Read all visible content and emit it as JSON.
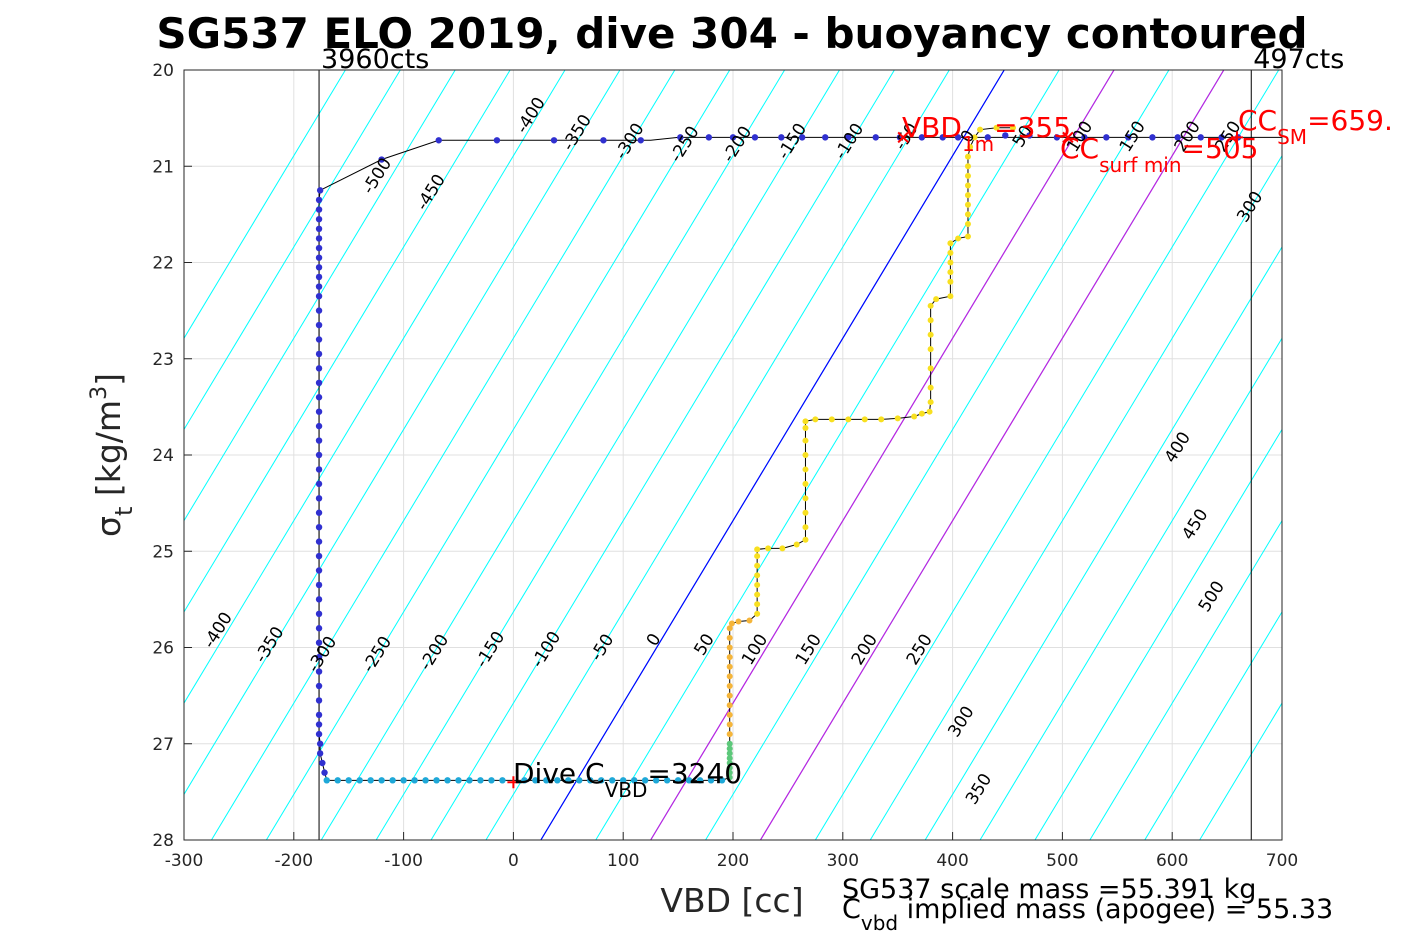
{
  "chart_data": {
    "type": "scatter",
    "title": "SG537 ELO 2019, dive 304 - buoyancy contoured",
    "xlabel": "VBD [cc]",
    "ylabel": {
      "main": "σ",
      "sub": "t",
      "units_pre": " [kg/m",
      "units_sup": "3",
      "units_post": "]"
    },
    "xlim": [
      -300,
      700
    ],
    "ylim": [
      20,
      28
    ],
    "y_reversed": true,
    "grid": true,
    "xticks": [
      -300,
      -200,
      -100,
      0,
      100,
      200,
      300,
      400,
      500,
      600,
      700
    ],
    "yticks": [
      20,
      21,
      22,
      23,
      24,
      25,
      26,
      27,
      28
    ],
    "counts_lines": [
      {
        "x": -177,
        "label": "3960cts"
      },
      {
        "x": 672,
        "label": "497cts"
      }
    ],
    "contour_levels": [
      -500,
      -450,
      -400,
      -350,
      -300,
      -250,
      -200,
      -150,
      -100,
      -50,
      0,
      50,
      100,
      150,
      200,
      250,
      300,
      350,
      400,
      450,
      500
    ],
    "contour_labels": [
      {
        "text": "-400",
        "x": -265,
        "y": 25.85
      },
      {
        "text": "-350",
        "x": -218,
        "y": 26.0
      },
      {
        "text": "-300",
        "x": -170,
        "y": 26.1
      },
      {
        "text": "-250",
        "x": -120,
        "y": 26.1
      },
      {
        "text": "-200",
        "x": -68,
        "y": 26.08
      },
      {
        "text": "-150",
        "x": -17,
        "y": 26.05
      },
      {
        "text": "-100",
        "x": 34,
        "y": 26.05
      },
      {
        "text": "-50",
        "x": 85,
        "y": 26.03
      },
      {
        "text": "0",
        "x": 132,
        "y": 25.95
      },
      {
        "text": "50",
        "x": 178,
        "y": 26.0
      },
      {
        "text": "100",
        "x": 224,
        "y": 26.05
      },
      {
        "text": "150",
        "x": 273,
        "y": 26.05
      },
      {
        "text": "200",
        "x": 324,
        "y": 26.05
      },
      {
        "text": "250",
        "x": 374,
        "y": 26.05
      },
      {
        "text": "300",
        "x": 412,
        "y": 26.8
      },
      {
        "text": "350",
        "x": 428,
        "y": 27.5
      },
      {
        "text": "400",
        "x": 609,
        "y": 23.95
      },
      {
        "text": "450",
        "x": 625,
        "y": 24.75
      },
      {
        "text": "500",
        "x": 640,
        "y": 25.5
      },
      {
        "text": "300",
        "x": 675,
        "y": 21.45
      },
      {
        "text": "-500",
        "x": -120,
        "y": 21.13
      },
      {
        "text": "-450",
        "x": -71,
        "y": 21.3
      },
      {
        "text": "-400",
        "x": 20,
        "y": 20.5
      },
      {
        "text": "-350",
        "x": 62,
        "y": 20.68
      },
      {
        "text": "-300",
        "x": 110,
        "y": 20.77
      },
      {
        "text": "-250",
        "x": 160,
        "y": 20.8
      },
      {
        "text": "-200",
        "x": 208,
        "y": 20.8
      },
      {
        "text": "-150",
        "x": 258,
        "y": 20.77
      },
      {
        "text": "-100",
        "x": 310,
        "y": 20.77
      },
      {
        "text": "-50",
        "x": 362,
        "y": 20.72
      },
      {
        "text": "0",
        "x": 418,
        "y": 20.72
      },
      {
        "text": "50",
        "x": 468,
        "y": 20.72
      },
      {
        "text": "100",
        "x": 520,
        "y": 20.72
      },
      {
        "text": "150",
        "x": 568,
        "y": 20.72
      },
      {
        "text": "200",
        "x": 618,
        "y": 20.72
      },
      {
        "text": "250",
        "x": 655,
        "y": 20.72
      }
    ],
    "neutral_lines": [
      {
        "name": "VBD_1m",
        "color": "#0000ff",
        "x_at_28": 25,
        "x_at_20": 447
      },
      {
        "name": "CC_surf_min",
        "color": "#c020e0",
        "x_at_28": 125,
        "x_at_20": 547
      },
      {
        "name": "CC_SM",
        "color": "#c020e0",
        "x_at_28": 225,
        "x_at_20": 647
      }
    ],
    "colors": {
      "contour": "#00ffff",
      "neutral": "#0000ff",
      "surface": "#c020e0",
      "profile": "#000000",
      "marker": "#ff0000",
      "grid": "#e0e0e0"
    },
    "series": [
      {
        "color": "#3030d0",
        "size": 3.2,
        "points": [
          [
            -176,
            21.25
          ],
          [
            -177,
            21.35
          ],
          [
            -177,
            21.45
          ],
          [
            -177,
            21.55
          ],
          [
            -177,
            21.65
          ],
          [
            -177,
            21.75
          ],
          [
            -177,
            21.85
          ],
          [
            -177,
            21.95
          ],
          [
            -177,
            22.05
          ],
          [
            -177,
            22.15
          ],
          [
            -177,
            22.25
          ],
          [
            -177,
            22.35
          ],
          [
            -177,
            22.5
          ],
          [
            -177,
            22.65
          ],
          [
            -177,
            22.8
          ],
          [
            -177,
            22.95
          ],
          [
            -177,
            23.1
          ],
          [
            -177,
            23.25
          ],
          [
            -177,
            23.4
          ],
          [
            -177,
            23.55
          ],
          [
            -177,
            23.7
          ],
          [
            -177,
            23.85
          ],
          [
            -177,
            24.0
          ],
          [
            -177,
            24.15
          ],
          [
            -177,
            24.3
          ],
          [
            -177,
            24.45
          ],
          [
            -177,
            24.6
          ],
          [
            -177,
            24.75
          ],
          [
            -177,
            24.9
          ],
          [
            -177,
            25.05
          ],
          [
            -177,
            25.2
          ],
          [
            -177,
            25.35
          ],
          [
            -177,
            25.5
          ],
          [
            -177,
            25.65
          ],
          [
            -177,
            25.8
          ],
          [
            -177,
            25.95
          ],
          [
            -177,
            26.1
          ],
          [
            -177,
            26.25
          ],
          [
            -177,
            26.4
          ],
          [
            -177,
            26.55
          ],
          [
            -177,
            26.7
          ],
          [
            -177,
            26.8
          ],
          [
            -177,
            26.9
          ],
          [
            -176,
            27.0
          ],
          [
            -176,
            27.1
          ],
          [
            -174,
            27.2
          ],
          [
            -172,
            27.3
          ],
          [
            -120,
            20.93
          ],
          [
            -68,
            20.73
          ],
          [
            -15,
            20.73
          ],
          [
            37,
            20.73
          ],
          [
            82,
            20.73
          ],
          [
            116,
            20.73
          ],
          [
            152,
            20.7
          ],
          [
            178,
            20.7
          ],
          [
            200,
            20.7
          ],
          [
            220,
            20.7
          ],
          [
            244,
            20.7
          ],
          [
            263,
            20.7
          ],
          [
            284,
            20.7
          ],
          [
            305,
            20.7
          ],
          [
            330,
            20.7
          ],
          [
            352,
            20.7
          ],
          [
            372,
            20.7
          ],
          [
            391,
            20.7
          ],
          [
            405,
            20.7
          ],
          [
            432,
            20.7
          ],
          [
            448,
            20.68
          ],
          [
            470,
            20.68
          ],
          [
            495,
            20.7
          ],
          [
            520,
            20.7
          ],
          [
            540,
            20.7
          ],
          [
            560,
            20.7
          ],
          [
            582,
            20.7
          ],
          [
            605,
            20.7
          ],
          [
            626,
            20.7
          ],
          [
            645,
            20.7
          ],
          [
            660,
            20.7
          ]
        ]
      },
      {
        "color": "#1ea8d8",
        "size": 3.2,
        "points": [
          [
            -170,
            27.38
          ],
          [
            -160,
            27.38
          ],
          [
            -150,
            27.38
          ],
          [
            -140,
            27.38
          ],
          [
            -130,
            27.38
          ],
          [
            -120,
            27.38
          ],
          [
            -110,
            27.38
          ],
          [
            -100,
            27.38
          ],
          [
            -90,
            27.38
          ],
          [
            -80,
            27.38
          ],
          [
            -70,
            27.38
          ],
          [
            -60,
            27.38
          ],
          [
            -50,
            27.38
          ],
          [
            -40,
            27.38
          ],
          [
            -30,
            27.38
          ],
          [
            -20,
            27.38
          ],
          [
            -10,
            27.38
          ],
          [
            10,
            27.38
          ],
          [
            20,
            27.38
          ],
          [
            30,
            27.38
          ],
          [
            40,
            27.38
          ],
          [
            50,
            27.38
          ],
          [
            60,
            27.38
          ],
          [
            70,
            27.38
          ],
          [
            80,
            27.38
          ],
          [
            90,
            27.38
          ],
          [
            100,
            27.38
          ],
          [
            110,
            27.38
          ],
          [
            120,
            27.38
          ],
          [
            130,
            27.38
          ],
          [
            140,
            27.38
          ],
          [
            150,
            27.38
          ],
          [
            160,
            27.38
          ],
          [
            170,
            27.38
          ],
          [
            180,
            27.38
          ],
          [
            190,
            27.38
          ]
        ]
      },
      {
        "color": "#5cc87a",
        "size": 3.0,
        "points": [
          [
            197,
            27.35
          ],
          [
            197,
            27.3
          ],
          [
            197,
            27.25
          ],
          [
            197,
            27.2
          ],
          [
            197,
            27.15
          ],
          [
            197,
            27.1
          ],
          [
            197,
            27.05
          ],
          [
            197,
            27.0
          ]
        ]
      },
      {
        "color": "#f5b53a",
        "size": 3.0,
        "points": [
          [
            197,
            26.9
          ],
          [
            197,
            26.8
          ],
          [
            197,
            26.7
          ],
          [
            197,
            26.6
          ],
          [
            197,
            26.5
          ],
          [
            197,
            26.4
          ],
          [
            197,
            26.3
          ],
          [
            197,
            26.2
          ],
          [
            197,
            26.1
          ],
          [
            197,
            26.0
          ],
          [
            197,
            25.9
          ],
          [
            197,
            25.8
          ],
          [
            199,
            25.75
          ],
          [
            205,
            25.73
          ],
          [
            215,
            25.72
          ]
        ]
      },
      {
        "color": "#f8e020",
        "size": 3.0,
        "points": [
          [
            222,
            25.65
          ],
          [
            222,
            25.55
          ],
          [
            222,
            25.45
          ],
          [
            222,
            25.35
          ],
          [
            222,
            25.25
          ],
          [
            222,
            25.15
          ],
          [
            222,
            25.05
          ],
          [
            222,
            24.98
          ],
          [
            232,
            24.97
          ],
          [
            245,
            24.97
          ],
          [
            258,
            24.93
          ],
          [
            266,
            24.88
          ],
          [
            266,
            24.75
          ],
          [
            266,
            24.6
          ],
          [
            266,
            24.45
          ],
          [
            266,
            24.3
          ],
          [
            266,
            24.15
          ],
          [
            266,
            24.0
          ],
          [
            266,
            23.85
          ],
          [
            266,
            23.72
          ],
          [
            266,
            23.65
          ],
          [
            275,
            23.63
          ],
          [
            290,
            23.63
          ],
          [
            305,
            23.63
          ],
          [
            320,
            23.63
          ],
          [
            335,
            23.63
          ],
          [
            350,
            23.62
          ],
          [
            365,
            23.6
          ],
          [
            372,
            23.57
          ],
          [
            379,
            23.55
          ],
          [
            380,
            23.45
          ],
          [
            380,
            23.3
          ],
          [
            380,
            23.1
          ],
          [
            380,
            22.9
          ],
          [
            380,
            22.75
          ],
          [
            380,
            22.6
          ],
          [
            380,
            22.45
          ],
          [
            385,
            22.38
          ],
          [
            398,
            22.35
          ],
          [
            398,
            22.2
          ],
          [
            398,
            22.1
          ],
          [
            398,
            22.0
          ],
          [
            398,
            21.9
          ],
          [
            398,
            21.8
          ],
          [
            405,
            21.75
          ],
          [
            414,
            21.73
          ],
          [
            414,
            21.6
          ],
          [
            414,
            21.5
          ],
          [
            414,
            21.4
          ],
          [
            414,
            21.3
          ],
          [
            414,
            21.2
          ],
          [
            414,
            21.1
          ],
          [
            414,
            21.0
          ],
          [
            414,
            20.9
          ],
          [
            416,
            20.8
          ],
          [
            420,
            20.7
          ],
          [
            425,
            20.62
          ],
          [
            440,
            20.6
          ],
          [
            455,
            20.6
          ]
        ]
      }
    ],
    "profile_line": [
      [
        -176,
        21.25
      ],
      [
        -120,
        20.93
      ],
      [
        -68,
        20.73
      ],
      [
        125,
        20.73
      ],
      [
        150,
        20.7
      ],
      [
        700,
        20.7
      ]
    ],
    "annotations": {
      "vbd_1m": {
        "pre": "VBD",
        "sub": "1m",
        "post": "=355",
        "color": "#ff0000"
      },
      "cc_sm": {
        "pre": "CC",
        "sub": "SM",
        "post": "=659.",
        "color": "#ff0000"
      },
      "cc_surf_min": {
        "pre": "CC",
        "sub": "surf min",
        "post": "=505",
        "color": "#ff0000"
      },
      "dive_c_vbd": {
        "pre": "Dive C",
        "sub": "VBD",
        "post": "=3240",
        "color": "#000000"
      }
    },
    "markers": [
      {
        "x": 0,
        "y": 27.4,
        "symbol": "+",
        "color": "#ff0000"
      },
      {
        "x": 355,
        "y": 20.7,
        "symbol": "x",
        "color": "#ff0000"
      },
      {
        "x": 659,
        "y": 20.7,
        "symbol": "+",
        "color": "#ff0000"
      },
      {
        "x": 505,
        "y": 20.7,
        "symbol": "x",
        "color": "#ff0000"
      }
    ]
  },
  "footer": {
    "scale_mass": "SG537 scale mass =55.391 kg",
    "implied_pre": "C",
    "implied_sub": "vbd",
    "implied_post": " implied mass (apogee) = 55.33"
  }
}
